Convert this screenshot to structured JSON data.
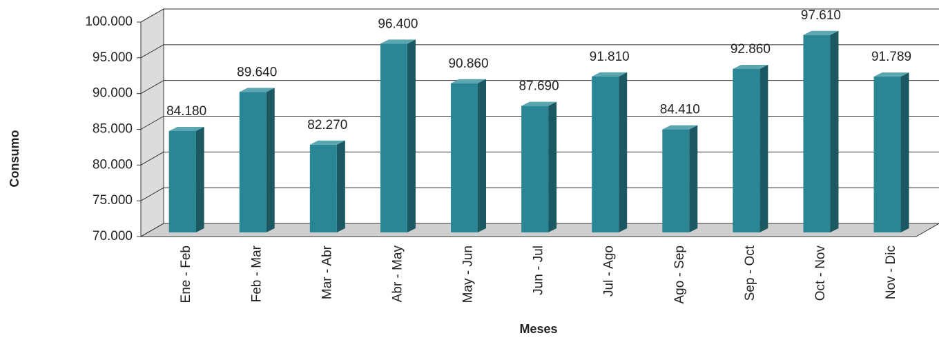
{
  "chart_data": {
    "type": "bar3d",
    "y_label": "Consumo",
    "x_label": "Meses",
    "categories": [
      "Ene - Feb",
      "Feb - Mar",
      "Mar - Abr",
      "Abr - May",
      "May - Jun",
      "Jun - Jul",
      "Jul - Ago",
      "Ago - Sep",
      "Sep - Oct",
      "Oct - Nov",
      "Nov - Dic"
    ],
    "values": [
      84180,
      89640,
      82270,
      96400,
      90860,
      87690,
      91810,
      84410,
      92860,
      97610,
      91789
    ],
    "value_labels": [
      "84.180",
      "89.640",
      "82.270",
      "96.400",
      "90.860",
      "87.690",
      "91.810",
      "84.410",
      "92.860",
      "97.610",
      "91.789"
    ],
    "color": "#2a8694",
    "ylim": [
      70000,
      100000
    ],
    "yticks": [
      {
        "value": 70000,
        "label": "70.000"
      },
      {
        "value": 75000,
        "label": "75.000"
      },
      {
        "value": 80000,
        "label": "80.000"
      },
      {
        "value": 85000,
        "label": "85.000"
      },
      {
        "value": 90000,
        "label": "90.000"
      },
      {
        "value": 95000,
        "label": "95.000"
      },
      {
        "value": 100000,
        "label": "100.000"
      }
    ],
    "grid": true
  }
}
